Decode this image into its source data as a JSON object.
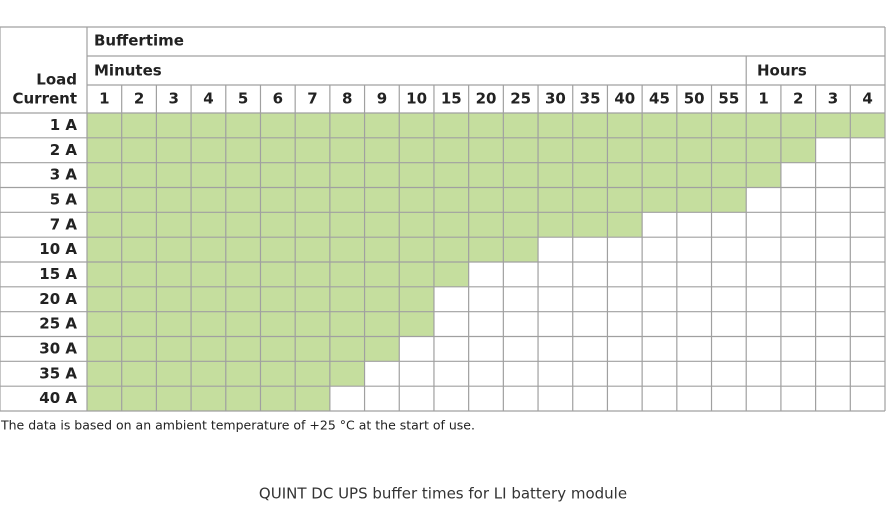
{
  "table": {
    "buffertime_label": "Buffertime",
    "minutes_label": "Minutes",
    "hours_label": "Hours",
    "load_label": [
      "Load",
      "Current"
    ],
    "minutes": [
      "1",
      "2",
      "3",
      "4",
      "5",
      "6",
      "7",
      "8",
      "9",
      "10",
      "15",
      "20",
      "25",
      "30",
      "35",
      "40",
      "45",
      "50",
      "55"
    ],
    "hours": [
      "1",
      "2",
      "3",
      "4"
    ],
    "rows": [
      {
        "label": "1 A",
        "filled": 23
      },
      {
        "label": "2 A",
        "filled": 21
      },
      {
        "label": "3 A",
        "filled": 20
      },
      {
        "label": "5 A",
        "filled": 19
      },
      {
        "label": "7 A",
        "filled": 16
      },
      {
        "label": "10 A",
        "filled": 13
      },
      {
        "label": "15 A",
        "filled": 11
      },
      {
        "label": "20 A",
        "filled": 10
      },
      {
        "label": "25 A",
        "filled": 10
      },
      {
        "label": "30 A",
        "filled": 9
      },
      {
        "label": "35 A",
        "filled": 8
      },
      {
        "label": "40 A",
        "filled": 7
      }
    ],
    "footnote": "The data is based on an ambient temperature of +25 °C at the start of use.",
    "caption": "QUINT DC UPS buffer times for LI battery module"
  }
}
